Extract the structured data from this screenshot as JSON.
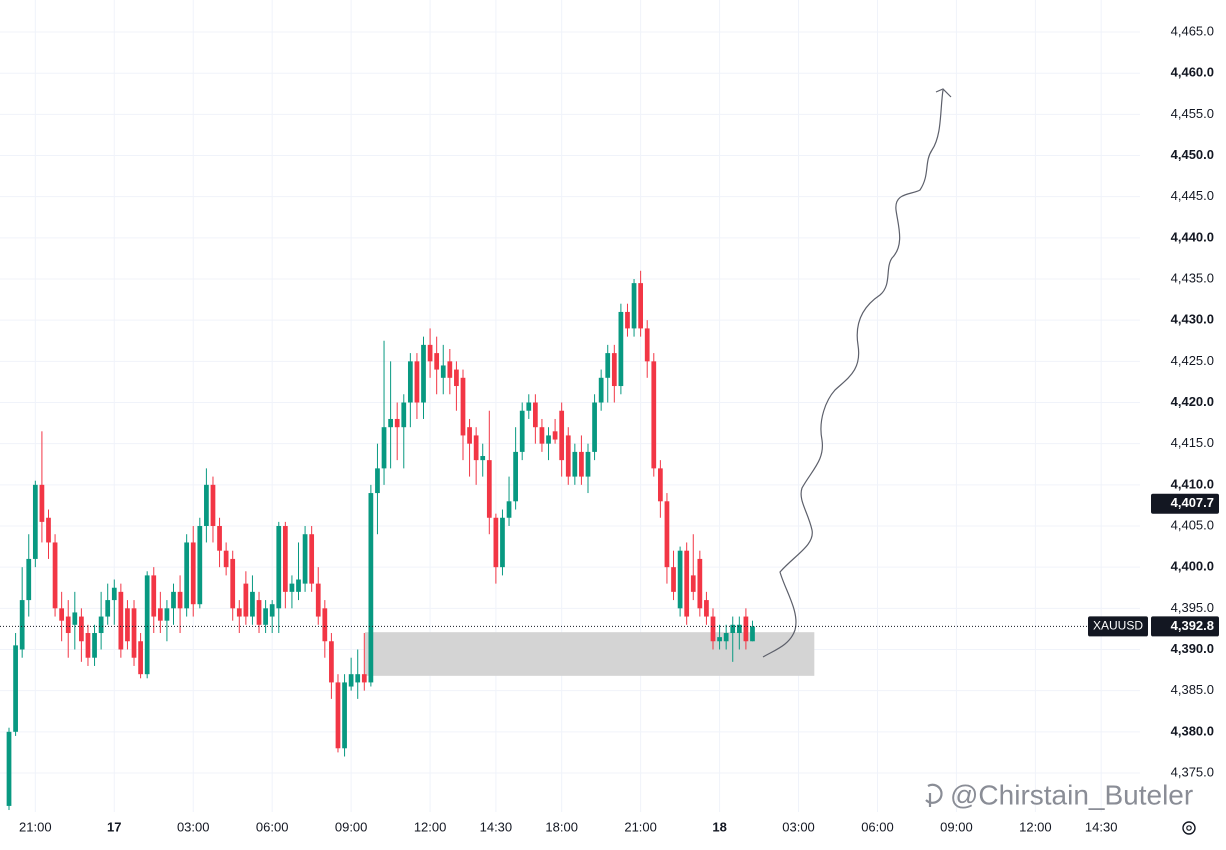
{
  "chart_data": {
    "type": "candlestick",
    "symbol": "XAUUSD",
    "up_color": "#089981",
    "down_color": "#f23645",
    "grid": true,
    "ylim": [
      4370.26,
      4468.89
    ],
    "yticks": [
      {
        "value": 4375,
        "label": "4,375.0"
      },
      {
        "value": 4380,
        "label": "4,380.0"
      },
      {
        "value": 4385,
        "label": "4,385.0"
      },
      {
        "value": 4390,
        "label": "4,390.0"
      },
      {
        "value": 4395,
        "label": "4,395.0"
      },
      {
        "value": 4400,
        "label": "4,400.0"
      },
      {
        "value": 4405,
        "label": "4,405.0"
      },
      {
        "value": 4410,
        "label": "4,410.0"
      },
      {
        "value": 4415,
        "label": "4,415.0"
      },
      {
        "value": 4420,
        "label": "4,420.0"
      },
      {
        "value": 4425,
        "label": "4,425.0"
      },
      {
        "value": 4430,
        "label": "4,430.0"
      },
      {
        "value": 4435,
        "label": "4,435.0"
      },
      {
        "value": 4440,
        "label": "4,440.0"
      },
      {
        "value": 4445,
        "label": "4,445.0"
      },
      {
        "value": 4450,
        "label": "4,450.0"
      },
      {
        "value": 4455,
        "label": "4,455.0"
      },
      {
        "value": 4460,
        "label": "4,460.0"
      },
      {
        "value": 4465,
        "label": "4,465.0"
      }
    ],
    "xlim": [
      -1.37,
      171.9
    ],
    "xticks": [
      {
        "value": 4,
        "label": "21:00"
      },
      {
        "value": 16,
        "label": "17"
      },
      {
        "value": 28,
        "label": "03:00"
      },
      {
        "value": 40,
        "label": "06:00"
      },
      {
        "value": 52,
        "label": "09:00"
      },
      {
        "value": 64,
        "label": "12:00"
      },
      {
        "value": 74,
        "label": "14:30"
      },
      {
        "value": 84,
        "label": "18:00"
      },
      {
        "value": 96,
        "label": "21:00"
      },
      {
        "value": 108,
        "label": "18"
      },
      {
        "value": 120,
        "label": "03:00"
      },
      {
        "value": 132,
        "label": "06:00"
      },
      {
        "value": 144,
        "label": "09:00"
      },
      {
        "value": 156,
        "label": "12:00"
      },
      {
        "value": 166,
        "label": "14:30"
      }
    ],
    "open": [
      4371,
      4380,
      4390,
      4396,
      4401,
      4410,
      4406,
      4403,
      4395,
      4394,
      4393,
      4394,
      4392,
      4389,
      4392,
      4394,
      4396,
      4397,
      4395,
      4395,
      4391,
      4387,
      4399,
      4395,
      4393.5,
      4395,
      4397,
      4395,
      4403,
      4395.5,
      4405,
      4410,
      4405,
      4402,
      4401,
      4395,
      4398,
      4394,
      4396,
      4393,
      4394,
      4395,
      4405,
      4397,
      4397,
      4398,
      4404,
      4398,
      4395,
      4391,
      4386,
      4378,
      4385.5,
      4386,
      4387,
      4386,
      4409,
      4412,
      4417,
      4418,
      4417,
      4420,
      4425,
      4420,
      4427,
      4426,
      4423,
      4425,
      4424,
      4423,
      4417,
      4416,
      4413,
      4413,
      4406,
      4400,
      4406,
      4408,
      4414,
      4419,
      4420,
      4417,
      4415,
      4416.5,
      4419,
      4416,
      4411,
      4414,
      4411,
      4414,
      4420,
      4423,
      4426,
      4422,
      4431,
      4429,
      4434.5,
      4429,
      4425,
      4412,
      4408,
      4400,
      4395,
      4402,
      4399,
      4401,
      4396,
      4394,
      4391,
      4391,
      4392,
      4392,
      4394,
      4391
    ],
    "high": [
      4380.5,
      4392,
      4400,
      4404,
      4410.5,
      4416.5,
      4407,
      4404,
      4397,
      4396,
      4397,
      4395,
      4393,
      4393,
      4397,
      4398,
      4398.5,
      4398,
      4396,
      4396,
      4392,
      4399.5,
      4400,
      4397,
      4396,
      4398,
      4399,
      4404,
      4405,
      4406,
      4412,
      4411,
      4406,
      4403,
      4402,
      4396,
      4399.5,
      4399,
      4397,
      4396,
      4396,
      4405.5,
      4405.5,
      4399,
      4403,
      4405,
      4405,
      4400,
      4396,
      4392,
      4387,
      4387,
      4389,
      4390,
      4392,
      4410,
      4415,
      4427.5,
      4425,
      4420,
      4421,
      4426,
      4426,
      4428,
      4429,
      4428,
      4427,
      4426.5,
      4425,
      4424,
      4418,
      4417,
      4415,
      4419,
      4406.5,
      4407,
      4411,
      4417,
      4420,
      4421,
      4421,
      4418,
      4417,
      4418,
      4420,
      4417,
      4415,
      4416,
      4415,
      4421,
      4424,
      4427,
      4427,
      4432,
      4432,
      4435,
      4436,
      4430,
      4426,
      4413,
      4409,
      4402,
      4402.5,
      4403,
      4404,
      4402,
      4397,
      4395,
      4393,
      4393,
      4394,
      4394,
      4395,
      4393.5
    ],
    "low": [
      4370.5,
      4379.5,
      4389,
      4394,
      4400,
      4403,
      4401,
      4394,
      4391,
      4389,
      4390,
      4388.5,
      4388,
      4388,
      4390,
      4393,
      4393,
      4389,
      4390,
      4388,
      4386.5,
      4386.5,
      4392,
      4392,
      4391,
      4393,
      4392,
      4394,
      4394,
      4395,
      4403,
      4403,
      4400,
      4399,
      4393.5,
      4392,
      4393,
      4393,
      4392,
      4392,
      4392,
      4392,
      4395,
      4395,
      4396,
      4397,
      4397,
      4393,
      4389,
      4384,
      4377.5,
      4377,
      4385,
      4384,
      4385,
      4385.5,
      4404,
      4410,
      4412,
      4413,
      4412,
      4417,
      4418,
      4418,
      4423,
      4421,
      4421,
      4421,
      4419,
      4413,
      4411,
      4410,
      4411,
      4404,
      4398,
      4399,
      4405,
      4407,
      4413,
      4418,
      4415,
      4414,
      4413,
      4415,
      4411,
      4410,
      4410,
      4410,
      4409,
      4413,
      4419,
      4420,
      4420,
      4421,
      4428,
      4428,
      4428,
      4423,
      4411,
      4406,
      4398,
      4396,
      4394,
      4393,
      4396,
      4394,
      4393,
      4390,
      4390,
      4390,
      4388.5,
      4390,
      4390,
      4391
    ],
    "close": [
      4380,
      4390.5,
      4396,
      4401,
      4410,
      4405.5,
      4403,
      4395,
      4393.5,
      4392,
      4394.5,
      4391,
      4389,
      4392,
      4394,
      4396,
      4397.5,
      4390,
      4391,
      4389,
      4387,
      4399,
      4394,
      4393.5,
      4395,
      4397,
      4395,
      4403,
      4395.5,
      4405,
      4410,
      4405,
      4402,
      4400,
      4395,
      4394,
      4394,
      4397,
      4393,
      4395,
      4395.5,
      4405,
      4397,
      4398,
      4398.5,
      4404,
      4398,
      4394,
      4391,
      4386,
      4378,
      4386,
      4387,
      4387,
      4386,
      4409,
      4412,
      4417,
      4418,
      4417,
      4420,
      4425,
      4420,
      4427,
      4425,
      4424,
      4424.5,
      4423,
      4422,
      4416,
      4415,
      4413,
      4413.5,
      4406,
      4400,
      4406,
      4408,
      4414,
      4419,
      4420,
      4417,
      4415,
      4416,
      4415.5,
      4413,
      4411,
      4414,
      4411,
      4414,
      4420,
      4423,
      4426,
      4422,
      4431,
      4429,
      4434.5,
      4429,
      4425,
      4412,
      4408,
      4400,
      4397,
      4402,
      4394,
      4397,
      4395,
      4394,
      4391,
      4391.5,
      4392,
      4393,
      4393,
      4391,
      4392.8
    ],
    "zone": {
      "top": 4392.1,
      "bottom": 4386.8,
      "x": [
        54.1,
        122.4
      ],
      "color": "#d4d4d4"
    },
    "last_price": {
      "value": 4392.8,
      "label": "4,392.8"
    },
    "marker_price": {
      "value": 4407.7,
      "label": "4,407.7"
    },
    "watermark": "@Chirstain_Buteler"
  }
}
